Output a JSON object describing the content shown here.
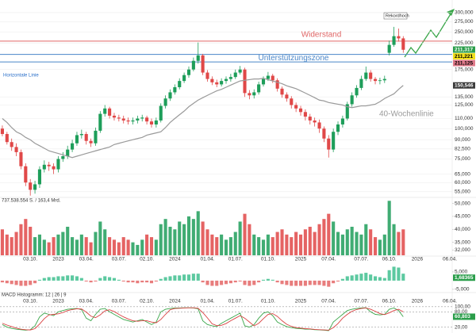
{
  "chart_data": [
    {
      "type": "candlestick",
      "log": true,
      "grid": true,
      "up_color": "#1e9e5a",
      "down_color": "#e04848",
      "categories": [
        null,
        null,
        null,
        null,
        null,
        null,
        "03.10.",
        null,
        null,
        null,
        null,
        null,
        "2023",
        null,
        null,
        null,
        null,
        null,
        "03.04.",
        null,
        null,
        null,
        null,
        null,
        null,
        "03.07.",
        null,
        null,
        null,
        null,
        null,
        "02.10.",
        null,
        null,
        null,
        null,
        null,
        "2024",
        null,
        null,
        null,
        null,
        null,
        null,
        "01.04.",
        null,
        null,
        null,
        null,
        null,
        "01.07.",
        null,
        null,
        null,
        null,
        null,
        null,
        "01.10.",
        null,
        null,
        null,
        null,
        null,
        null,
        "2025",
        null,
        null,
        null,
        null,
        null,
        "07.04.",
        null,
        null,
        null,
        null,
        null,
        null,
        "07.07.",
        null,
        null,
        null,
        null,
        null,
        "06.10.",
        null,
        null,
        null,
        null,
        null,
        "2026",
        null,
        null,
        null,
        null,
        null,
        null,
        "06.04."
      ],
      "open": [
        100,
        95,
        88,
        84,
        80,
        70,
        60,
        56,
        59,
        68,
        71,
        70,
        68,
        75,
        77,
        82,
        87,
        94,
        95,
        89,
        87,
        98,
        115,
        121,
        113,
        111,
        110,
        108,
        107,
        108,
        110,
        111,
        107,
        104,
        108,
        124,
        133,
        141,
        148,
        157,
        166,
        175,
        190,
        200,
        170,
        160,
        155,
        152,
        157,
        160,
        163,
        170,
        175,
        140,
        137,
        141,
        152,
        160,
        165,
        158,
        146,
        138,
        133,
        125,
        121,
        117,
        112,
        108,
        106,
        100,
        91,
        82,
        97,
        104,
        110,
        126,
        137,
        147,
        160,
        170,
        160,
        157,
        158,
        205,
        221,
        240,
        235,
        null,
        null,
        null,
        null,
        null,
        null,
        null,
        null,
        null,
        null
      ],
      "high": [
        103,
        97,
        91,
        87,
        82,
        72,
        62,
        61,
        70,
        74,
        73,
        72,
        77,
        80,
        85,
        90,
        97,
        99,
        97,
        91,
        101,
        118,
        125,
        123,
        116,
        114,
        113,
        111,
        111,
        113,
        114,
        113,
        110,
        111,
        127,
        137,
        145,
        152,
        161,
        170,
        180,
        196,
        226,
        203,
        174,
        164,
        159,
        161,
        164,
        168,
        175,
        181,
        178,
        144,
        145,
        156,
        164,
        171,
        168,
        161,
        149,
        141,
        136,
        128,
        124,
        120,
        115,
        111,
        109,
        102,
        94,
        100,
        107,
        113,
        129,
        141,
        151,
        165,
        180,
        174,
        163,
        162,
        165,
        230,
        262,
        258,
        240,
        null,
        null,
        null,
        null,
        null,
        null,
        null,
        null,
        null,
        null
      ],
      "low": [
        93,
        86,
        81,
        77,
        68,
        58,
        53,
        54,
        57,
        66,
        67,
        65,
        66,
        73,
        75,
        80,
        85,
        91,
        86,
        84,
        85,
        96,
        112,
        110,
        108,
        107,
        105,
        104,
        104,
        105,
        107,
        104,
        101,
        101,
        106,
        121,
        130,
        138,
        145,
        154,
        162,
        172,
        185,
        166,
        156,
        151,
        148,
        149,
        153,
        156,
        160,
        167,
        135,
        132,
        133,
        138,
        149,
        157,
        154,
        142,
        134,
        129,
        121,
        117,
        113,
        108,
        104,
        102,
        96,
        88,
        76,
        80,
        94,
        101,
        108,
        123,
        134,
        144,
        157,
        156,
        152,
        152,
        154,
        200,
        217,
        228,
        205,
        null,
        null,
        null,
        null,
        null,
        null,
        null,
        null,
        null,
        null
      ],
      "close": [
        95,
        88,
        84,
        80,
        70,
        60,
        56,
        59,
        68,
        71,
        70,
        68,
        75,
        77,
        82,
        87,
        94,
        95,
        89,
        87,
        98,
        115,
        121,
        113,
        111,
        110,
        108,
        107,
        108,
        110,
        111,
        107,
        104,
        108,
        124,
        133,
        141,
        148,
        157,
        166,
        175,
        190,
        200,
        170,
        160,
        155,
        152,
        157,
        160,
        163,
        170,
        175,
        140,
        137,
        141,
        152,
        160,
        165,
        158,
        146,
        138,
        133,
        125,
        121,
        117,
        112,
        108,
        106,
        100,
        91,
        82,
        97,
        104,
        110,
        126,
        137,
        147,
        160,
        170,
        160,
        157,
        158,
        160,
        221,
        240,
        235,
        211,
        null,
        null,
        null,
        null,
        null,
        null,
        null,
        null,
        null,
        null
      ],
      "series": [
        {
          "name": "40-Wochenlinie",
          "color": "#9a9a9a",
          "values": [
            110,
            106,
            101,
            97,
            95,
            92,
            90,
            87,
            85,
            83,
            81,
            80,
            79,
            78,
            77,
            76,
            77,
            78,
            79,
            80,
            81,
            82,
            83,
            84,
            86,
            87,
            88,
            89,
            90,
            91,
            92,
            94,
            95,
            96,
            97,
            101,
            106,
            110,
            114,
            118,
            123,
            127,
            131,
            134,
            137,
            140,
            143,
            145,
            148,
            151,
            154,
            157,
            158,
            159,
            160,
            160,
            161,
            159,
            157,
            155,
            153,
            150,
            148,
            146,
            143,
            140,
            137,
            134,
            131,
            130,
            128,
            127,
            126,
            125,
            123,
            122,
            123,
            124,
            124,
            125,
            126,
            129,
            133,
            136,
            139,
            145,
            150.5,
            null,
            null,
            null,
            null,
            null,
            null,
            null,
            null,
            null,
            null
          ]
        }
      ],
      "ylim": [
        52.5,
        333
      ],
      "yticks": [
        {
          "value": 300,
          "label": "300,000"
        },
        {
          "value": 275,
          "label": "275,000"
        },
        {
          "value": 250,
          "label": "250,000"
        },
        {
          "value": 225,
          "label": "225,000"
        },
        {
          "value": 175,
          "label": "175,000"
        },
        {
          "value": 135,
          "label": "135,000"
        },
        {
          "value": 125,
          "label": "125,000"
        },
        {
          "value": 110,
          "label": "110,000"
        },
        {
          "value": 100,
          "label": "100,000"
        },
        {
          "value": 90,
          "label": "90,000"
        },
        {
          "value": 82.5,
          "label": "82,500"
        },
        {
          "value": 75,
          "label": "75,000"
        },
        {
          "value": 65,
          "label": "65,000"
        },
        {
          "value": 60,
          "label": "60,000"
        },
        {
          "value": 55,
          "label": "55,000"
        }
      ],
      "tags": [
        {
          "value": 211.317,
          "label": "211,317",
          "color": "#2a9d4a"
        },
        {
          "value": 211.221,
          "label": "211,221",
          "color": "#f2e01c"
        },
        {
          "value": 211.125,
          "label": "211,125",
          "color": "#e07a8a"
        },
        {
          "value": 150.546,
          "label": "150,546",
          "color": "#3a3a3a"
        }
      ],
      "levels": [
        {
          "name": "Widerstand",
          "value": 229,
          "color": "#e06666"
        },
        {
          "name": "Unterstützungszone",
          "values": [
            202,
            188
          ],
          "color": "#4a86c8"
        }
      ],
      "annotations": [
        {
          "text": "Horizontale Linie",
          "color": "#2a6fc9"
        },
        {
          "text": "Rekordhoch",
          "color": "#222"
        }
      ]
    },
    {
      "type": "bar",
      "subtitle": "737.538.554 S. / 163,4 Mrd.",
      "values": [
        40000,
        38000,
        37000,
        39000,
        42000,
        44000,
        41000,
        37000,
        38000,
        36000,
        35000,
        37000,
        38000,
        39000,
        41000,
        37000,
        36000,
        38000,
        37000,
        35000,
        39000,
        43000,
        40000,
        37000,
        36000,
        35000,
        37000,
        36000,
        35000,
        34000,
        36000,
        38000,
        37000,
        36000,
        42000,
        44000,
        41000,
        40000,
        43000,
        42000,
        45000,
        44000,
        47000,
        43000,
        40000,
        38000,
        37000,
        38000,
        36000,
        37000,
        39000,
        43000,
        46000,
        42000,
        38000,
        37000,
        36000,
        38000,
        37000,
        39000,
        40000,
        38000,
        37000,
        39000,
        38000,
        40000,
        41000,
        39000,
        42000,
        44000,
        46000,
        43000,
        39000,
        38000,
        40000,
        41000,
        39000,
        38000,
        42000,
        40000,
        37000,
        36000,
        38000,
        51000,
        42000,
        39000,
        40000,
        null,
        null,
        null,
        null,
        null,
        null,
        null,
        null,
        null,
        null
      ],
      "ylim": [
        30000,
        52000
      ],
      "yticks": [
        {
          "value": 50000,
          "label": "50,000"
        },
        {
          "value": 45000,
          "label": "45,000"
        },
        {
          "value": 40000,
          "label": "40,000"
        },
        {
          "value": 35000,
          "label": "35,000"
        },
        {
          "value": 32000,
          "label": "32,000"
        }
      ]
    },
    {
      "type": "bar",
      "title": "MACD Histogramm: 12 | 26 | 9",
      "pos_color": "#5cc9a0",
      "neg_color": "#e87d7d",
      "values": [
        -1,
        -1.5,
        -2,
        -2.5,
        -3,
        -3,
        -2.5,
        -1.5,
        0.5,
        1.5,
        2,
        2,
        2.5,
        2.5,
        3,
        3,
        2.5,
        1.5,
        -0.5,
        -1,
        -0.5,
        1.5,
        2.5,
        2,
        1.5,
        0.5,
        -0.5,
        -1,
        -1,
        -1.5,
        -1,
        -1,
        -1.5,
        -0.5,
        1,
        2,
        2.5,
        3,
        3,
        3.5,
        3.5,
        4,
        4,
        -1,
        -2.5,
        -3,
        -3,
        -2.5,
        -2,
        -1.5,
        -1,
        -0.5,
        -2.5,
        -3,
        -2.5,
        -1,
        0.5,
        1,
        0.5,
        -1,
        -2,
        -2.5,
        -3,
        -3,
        -3,
        -3,
        -2.5,
        -2.5,
        -2.5,
        -3,
        -3.5,
        -1.5,
        -0.5,
        1,
        2.5,
        3,
        3.5,
        4,
        4.5,
        3.5,
        2.5,
        2,
        1.5,
        6,
        8,
        7.5,
        4,
        null,
        null,
        null,
        null,
        null,
        null,
        null,
        null,
        null,
        null
      ],
      "ylim": [
        -6.4,
        10.9
      ],
      "yticks": [
        {
          "value": 5,
          "label": "5,000"
        },
        {
          "value": -5,
          "label": "-5,000"
        }
      ],
      "tags": [
        {
          "value": 1.68365,
          "label": "1,68365",
          "color": "#2a9d4a"
        }
      ]
    },
    {
      "type": "line",
      "grid": true,
      "series": [
        {
          "color": "#3aa64a",
          "values": [
            30,
            20,
            15,
            12,
            10,
            8,
            10,
            25,
            60,
            75,
            70,
            65,
            80,
            85,
            90,
            92,
            93,
            88,
            55,
            45,
            70,
            90,
            93,
            80,
            70,
            60,
            50,
            45,
            40,
            45,
            50,
            40,
            30,
            40,
            80,
            90,
            93,
            95,
            95,
            96,
            96,
            95,
            92,
            45,
            30,
            25,
            22,
            35,
            45,
            55,
            65,
            75,
            25,
            20,
            30,
            55,
            75,
            80,
            65,
            40,
            30,
            22,
            18,
            15,
            14,
            12,
            12,
            10,
            9,
            8,
            6,
            40,
            55,
            70,
            85,
            90,
            93,
            95,
            96,
            80,
            70,
            68,
            70,
            90,
            95,
            85,
            60.8,
            null,
            null,
            null,
            null,
            null,
            null,
            null,
            null,
            null,
            null
          ]
        },
        {
          "color": "#d94040",
          "values": [
            35,
            28,
            22,
            16,
            12,
            10,
            9,
            14,
            32,
            53,
            68,
            70,
            72,
            77,
            85,
            89,
            92,
            91,
            79,
            63,
            57,
            68,
            84,
            88,
            81,
            70,
            60,
            52,
            45,
            43,
            45,
            45,
            40,
            37,
            50,
            70,
            88,
            93,
            94,
            95,
            96,
            96,
            94,
            77,
            56,
            33,
            26,
            27,
            34,
            45,
            55,
            65,
            55,
            40,
            25,
            35,
            53,
            70,
            73,
            62,
            45,
            31,
            23,
            18,
            16,
            14,
            13,
            11,
            10,
            9,
            8,
            18,
            34,
            55,
            70,
            82,
            89,
            93,
            95,
            90,
            82,
            73,
            69,
            76,
            85,
            90,
            80,
            null,
            null,
            null,
            null,
            null,
            null,
            null,
            null,
            null,
            null
          ]
        }
      ],
      "ylim": [
        0,
        112
      ],
      "yticks": [
        {
          "value": 100,
          "label": "100,00"
        },
        {
          "value": 80,
          "label": "80,00"
        },
        {
          "value": 20,
          "label": "20,00"
        }
      ],
      "tags": [
        {
          "value": 60.803,
          "label": "60,803",
          "color": "#2a9d4a"
        }
      ]
    }
  ]
}
